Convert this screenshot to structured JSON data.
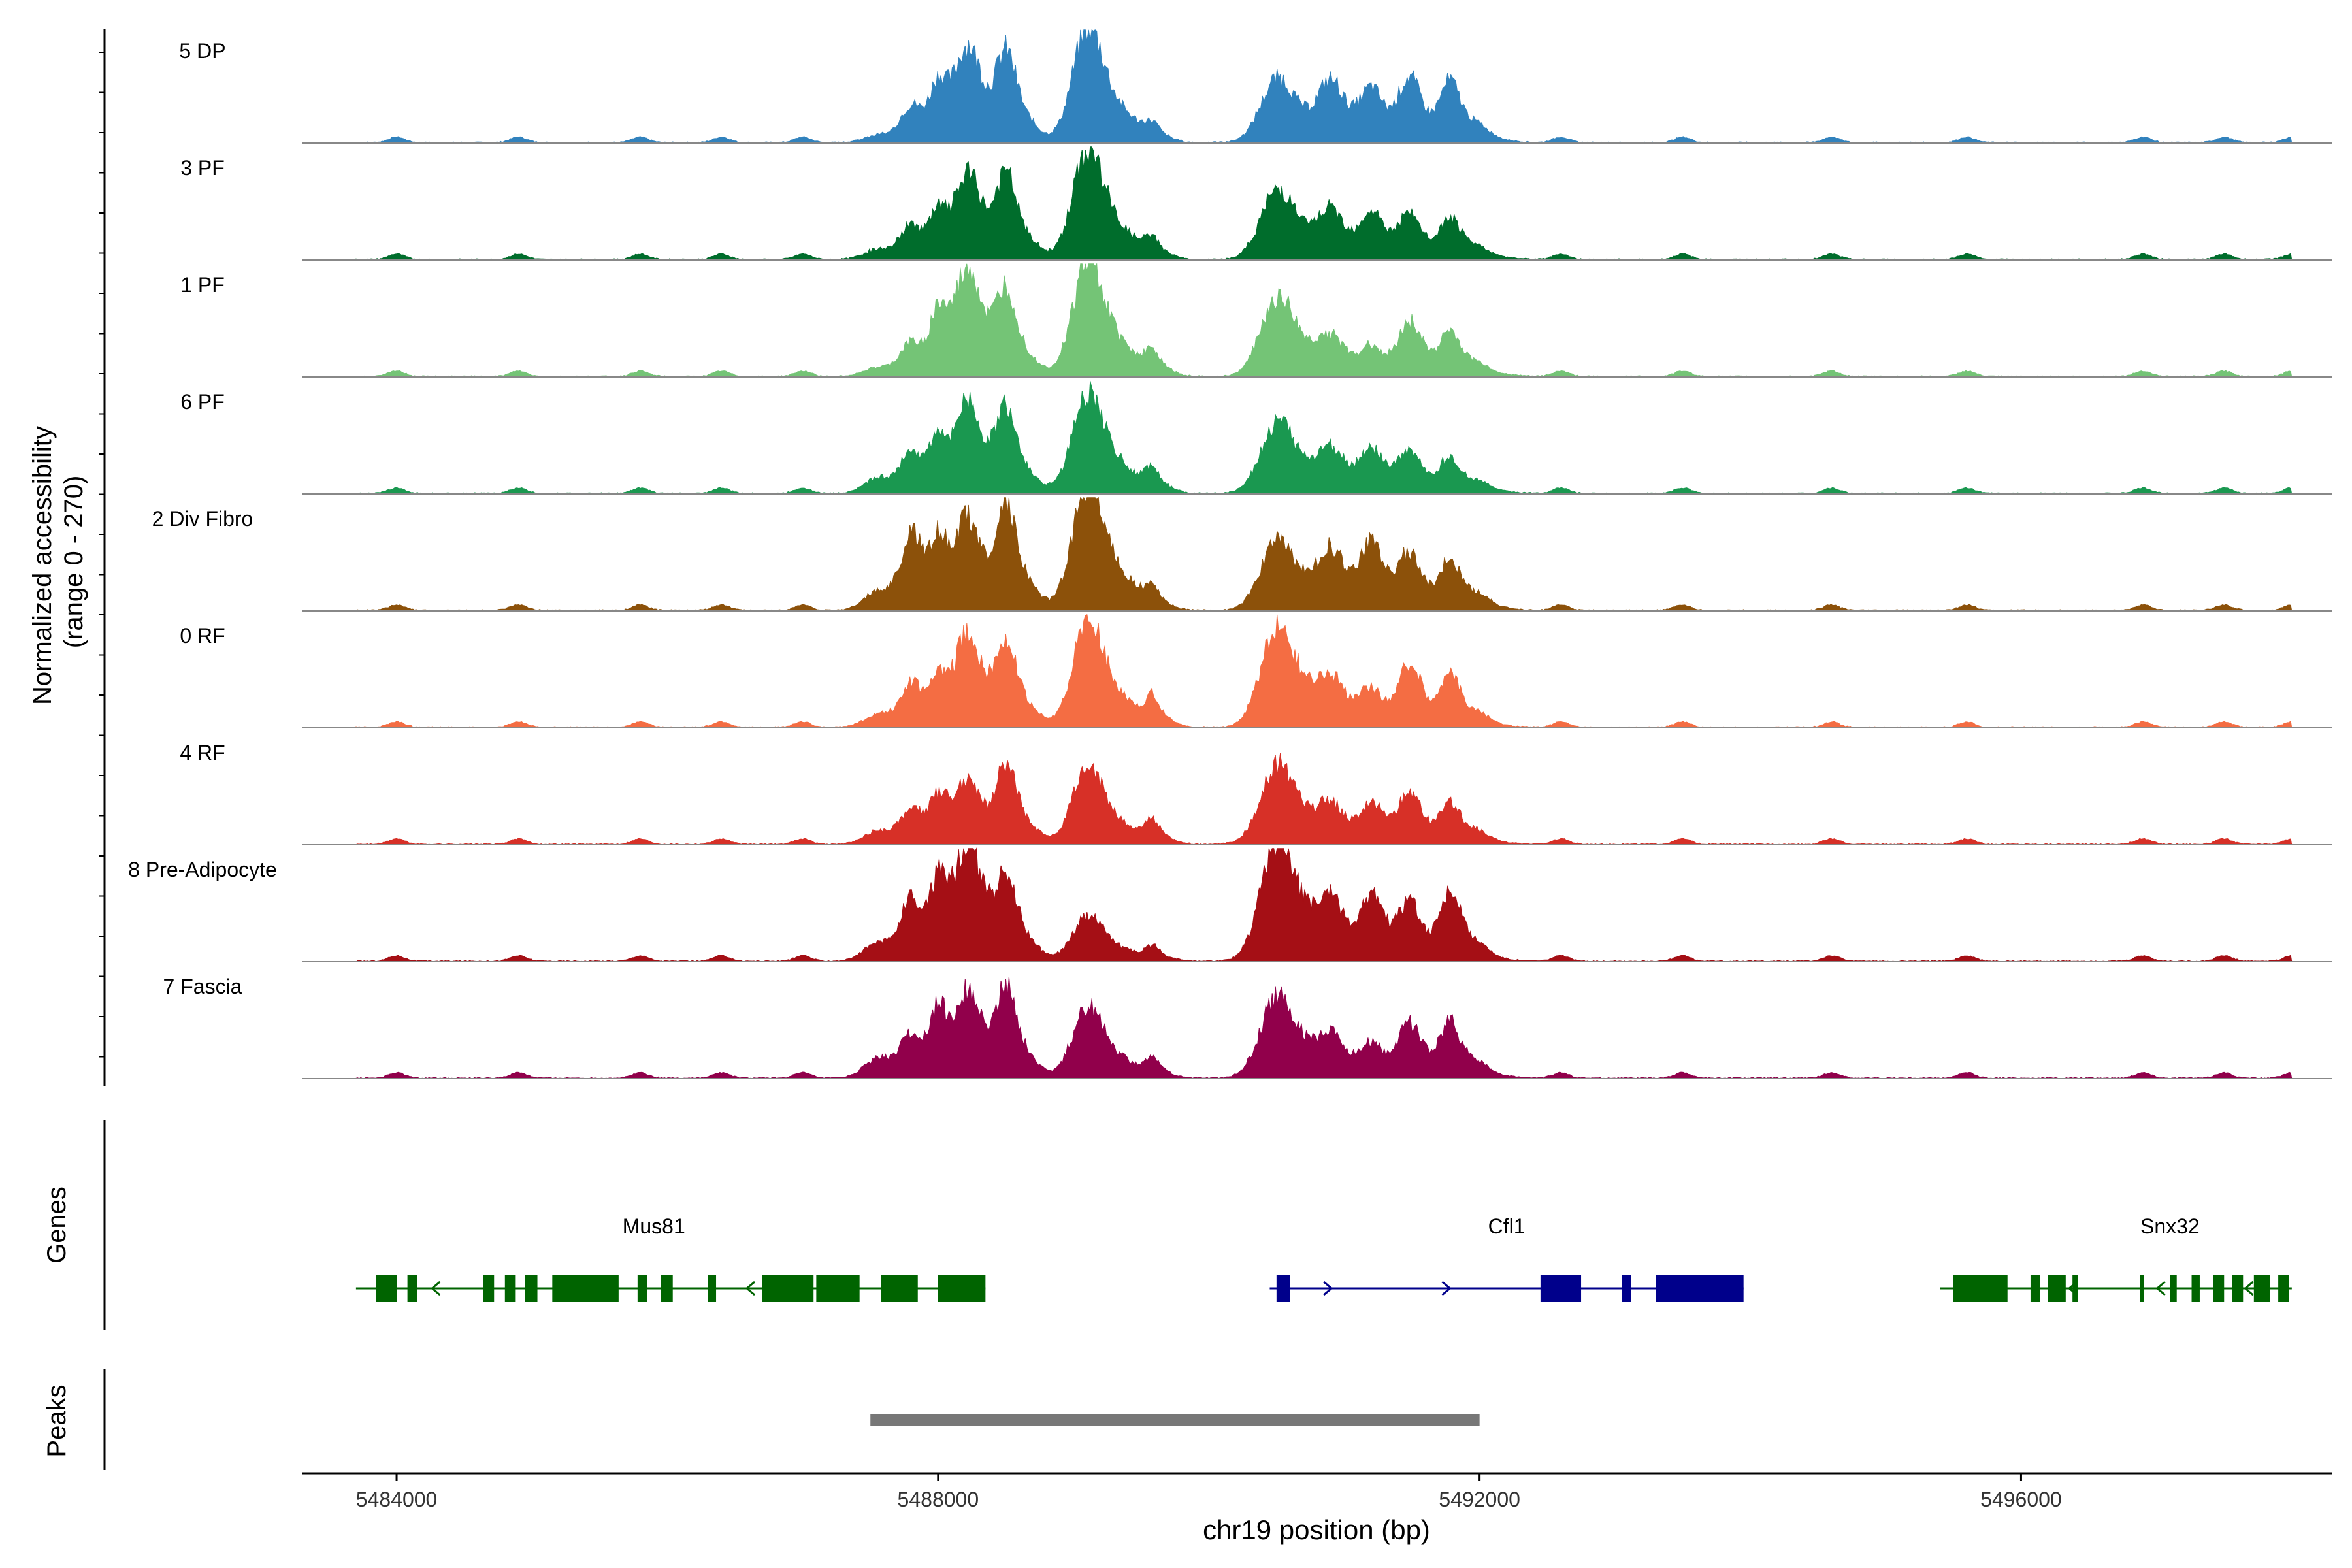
{
  "chart_data": {
    "type": "area",
    "title": "",
    "xlabel": "chr19 position (bp)",
    "ylabel_line1": "Normalized accessibility",
    "ylabel_line2": "(range 0 - 270)",
    "xlim": [
      5483300,
      5498300
    ],
    "xticks": [
      {
        "value": 5484000,
        "label": "5484000"
      },
      {
        "value": 5488000,
        "label": "5488000"
      },
      {
        "value": 5492000,
        "label": "5492000"
      },
      {
        "value": 5496000,
        "label": "5496000"
      }
    ],
    "ylim": [
      0,
      270
    ],
    "track_extent": [
      5483700,
      5498000
    ],
    "peak_centers": [
      {
        "pos": 5487550,
        "w": 100,
        "h": 0.12
      },
      {
        "pos": 5487800,
        "w": 80,
        "h": 0.28
      },
      {
        "pos": 5488220,
        "w": 90,
        "h": 0.62
      },
      {
        "pos": 5488500,
        "w": 70,
        "h": 0.68
      },
      {
        "pos": 5488000,
        "w": 60,
        "h": 0.45
      },
      {
        "pos": 5489100,
        "w": 110,
        "h": 0.93
      },
      {
        "pos": 5489580,
        "w": 50,
        "h": 0.22
      },
      {
        "pos": 5490500,
        "w": 120,
        "h": 0.9
      },
      {
        "pos": 5490900,
        "w": 90,
        "h": 0.35
      },
      {
        "pos": 5491200,
        "w": 80,
        "h": 0.42
      },
      {
        "pos": 5491480,
        "w": 80,
        "h": 0.68
      },
      {
        "pos": 5491780,
        "w": 70,
        "h": 0.6
      },
      {
        "pos": 5492000,
        "w": 80,
        "h": 0.08
      }
    ],
    "tracks": [
      {
        "label": "5 DP",
        "color": "#3182bd",
        "heights": [
          0.06,
          0.28,
          0.7,
          0.58,
          0.4,
          0.9,
          0.1,
          0.5,
          0.4,
          0.35,
          0.45,
          0.42,
          0.06
        ]
      },
      {
        "label": "3 PF",
        "color": "#006d2c",
        "heights": [
          0.08,
          0.25,
          0.62,
          0.55,
          0.3,
          0.85,
          0.12,
          0.55,
          0.3,
          0.32,
          0.3,
          0.28,
          0.05
        ]
      },
      {
        "label": "1 PF",
        "color": "#74c476",
        "heights": [
          0.07,
          0.25,
          0.78,
          0.55,
          0.45,
          0.9,
          0.15,
          0.62,
          0.22,
          0.2,
          0.4,
          0.3,
          0.05
        ]
      },
      {
        "label": "6 PF",
        "color": "#1a9850",
        "heights": [
          0.12,
          0.3,
          0.65,
          0.55,
          0.35,
          0.78,
          0.15,
          0.55,
          0.28,
          0.3,
          0.28,
          0.25,
          0.05
        ]
      },
      {
        "label": "2 Div Fibro",
        "color": "#8c510a",
        "heights": [
          0.15,
          0.55,
          0.65,
          0.7,
          0.4,
          1.0,
          0.12,
          0.55,
          0.4,
          0.45,
          0.38,
          0.35,
          0.06
        ]
      },
      {
        "label": "0 RF",
        "color": "#f46d43",
        "heights": [
          0.1,
          0.32,
          0.68,
          0.55,
          0.3,
          0.82,
          0.2,
          0.78,
          0.28,
          0.25,
          0.45,
          0.35,
          0.05
        ]
      },
      {
        "label": "4 RF",
        "color": "#d73027",
        "heights": [
          0.1,
          0.25,
          0.45,
          0.55,
          0.3,
          0.6,
          0.15,
          0.62,
          0.22,
          0.28,
          0.35,
          0.28,
          0.05
        ]
      },
      {
        "label": "8 Pre-Adipocyte",
        "color": "#a50f15",
        "heights": [
          0.15,
          0.45,
          0.85,
          0.55,
          0.5,
          0.35,
          0.1,
          0.95,
          0.35,
          0.45,
          0.4,
          0.5,
          0.05
        ]
      },
      {
        "label": "7 Fascia",
        "color": "#91004b",
        "heights": [
          0.15,
          0.3,
          0.6,
          0.6,
          0.45,
          0.55,
          0.12,
          0.65,
          0.25,
          0.22,
          0.4,
          0.38,
          0.05
        ]
      }
    ],
    "small_peaks": [
      5484000,
      5484900,
      5485800,
      5486400,
      5487000,
      5492600,
      5493500,
      5494600,
      5495600,
      5496900,
      5497500,
      5498000
    ],
    "genes_label": "Genes",
    "peaks_label": "Peaks",
    "genes": [
      {
        "name": "Mus81",
        "strand": "-",
        "color": "#006400",
        "start": 5483700,
        "end": 5488350,
        "label_pos": 5485900,
        "exons": [
          [
            5483850,
            5484000
          ],
          [
            5484080,
            5484150
          ],
          [
            5484640,
            5484720
          ],
          [
            5484800,
            5484880
          ],
          [
            5484950,
            5485040
          ],
          [
            5485150,
            5485640
          ],
          [
            5485780,
            5485850
          ],
          [
            5485950,
            5486040
          ],
          [
            5486300,
            5486360
          ],
          [
            5486700,
            5487080
          ],
          [
            5487100,
            5487420
          ],
          [
            5487580,
            5487850
          ],
          [
            5488000,
            5488350
          ]
        ]
      },
      {
        "name": "Cfl1",
        "strand": "+",
        "color": "#00008b",
        "start": 5490450,
        "end": 5493950,
        "label_pos": 5492200,
        "exons": [
          [
            5490500,
            5490600
          ],
          [
            5492450,
            5492750
          ],
          [
            5493050,
            5493120
          ],
          [
            5493300,
            5493950
          ]
        ]
      },
      {
        "name": "Snx32",
        "strand": "-",
        "color": "#006400",
        "start": 5495400,
        "end": 5498000,
        "label_pos": 5497100,
        "exons": [
          [
            5495500,
            5495900
          ],
          [
            5496070,
            5496140
          ],
          [
            5496200,
            5496330
          ],
          [
            5496380,
            5496420
          ],
          [
            5496880,
            5496910
          ],
          [
            5497100,
            5497150
          ],
          [
            5497260,
            5497320
          ],
          [
            5497420,
            5497500
          ],
          [
            5497560,
            5497640
          ],
          [
            5497720,
            5497840
          ],
          [
            5497900,
            5497980
          ]
        ]
      }
    ],
    "peaks": [
      {
        "start": 5487500,
        "end": 5492000,
        "color": "#777777"
      }
    ]
  }
}
